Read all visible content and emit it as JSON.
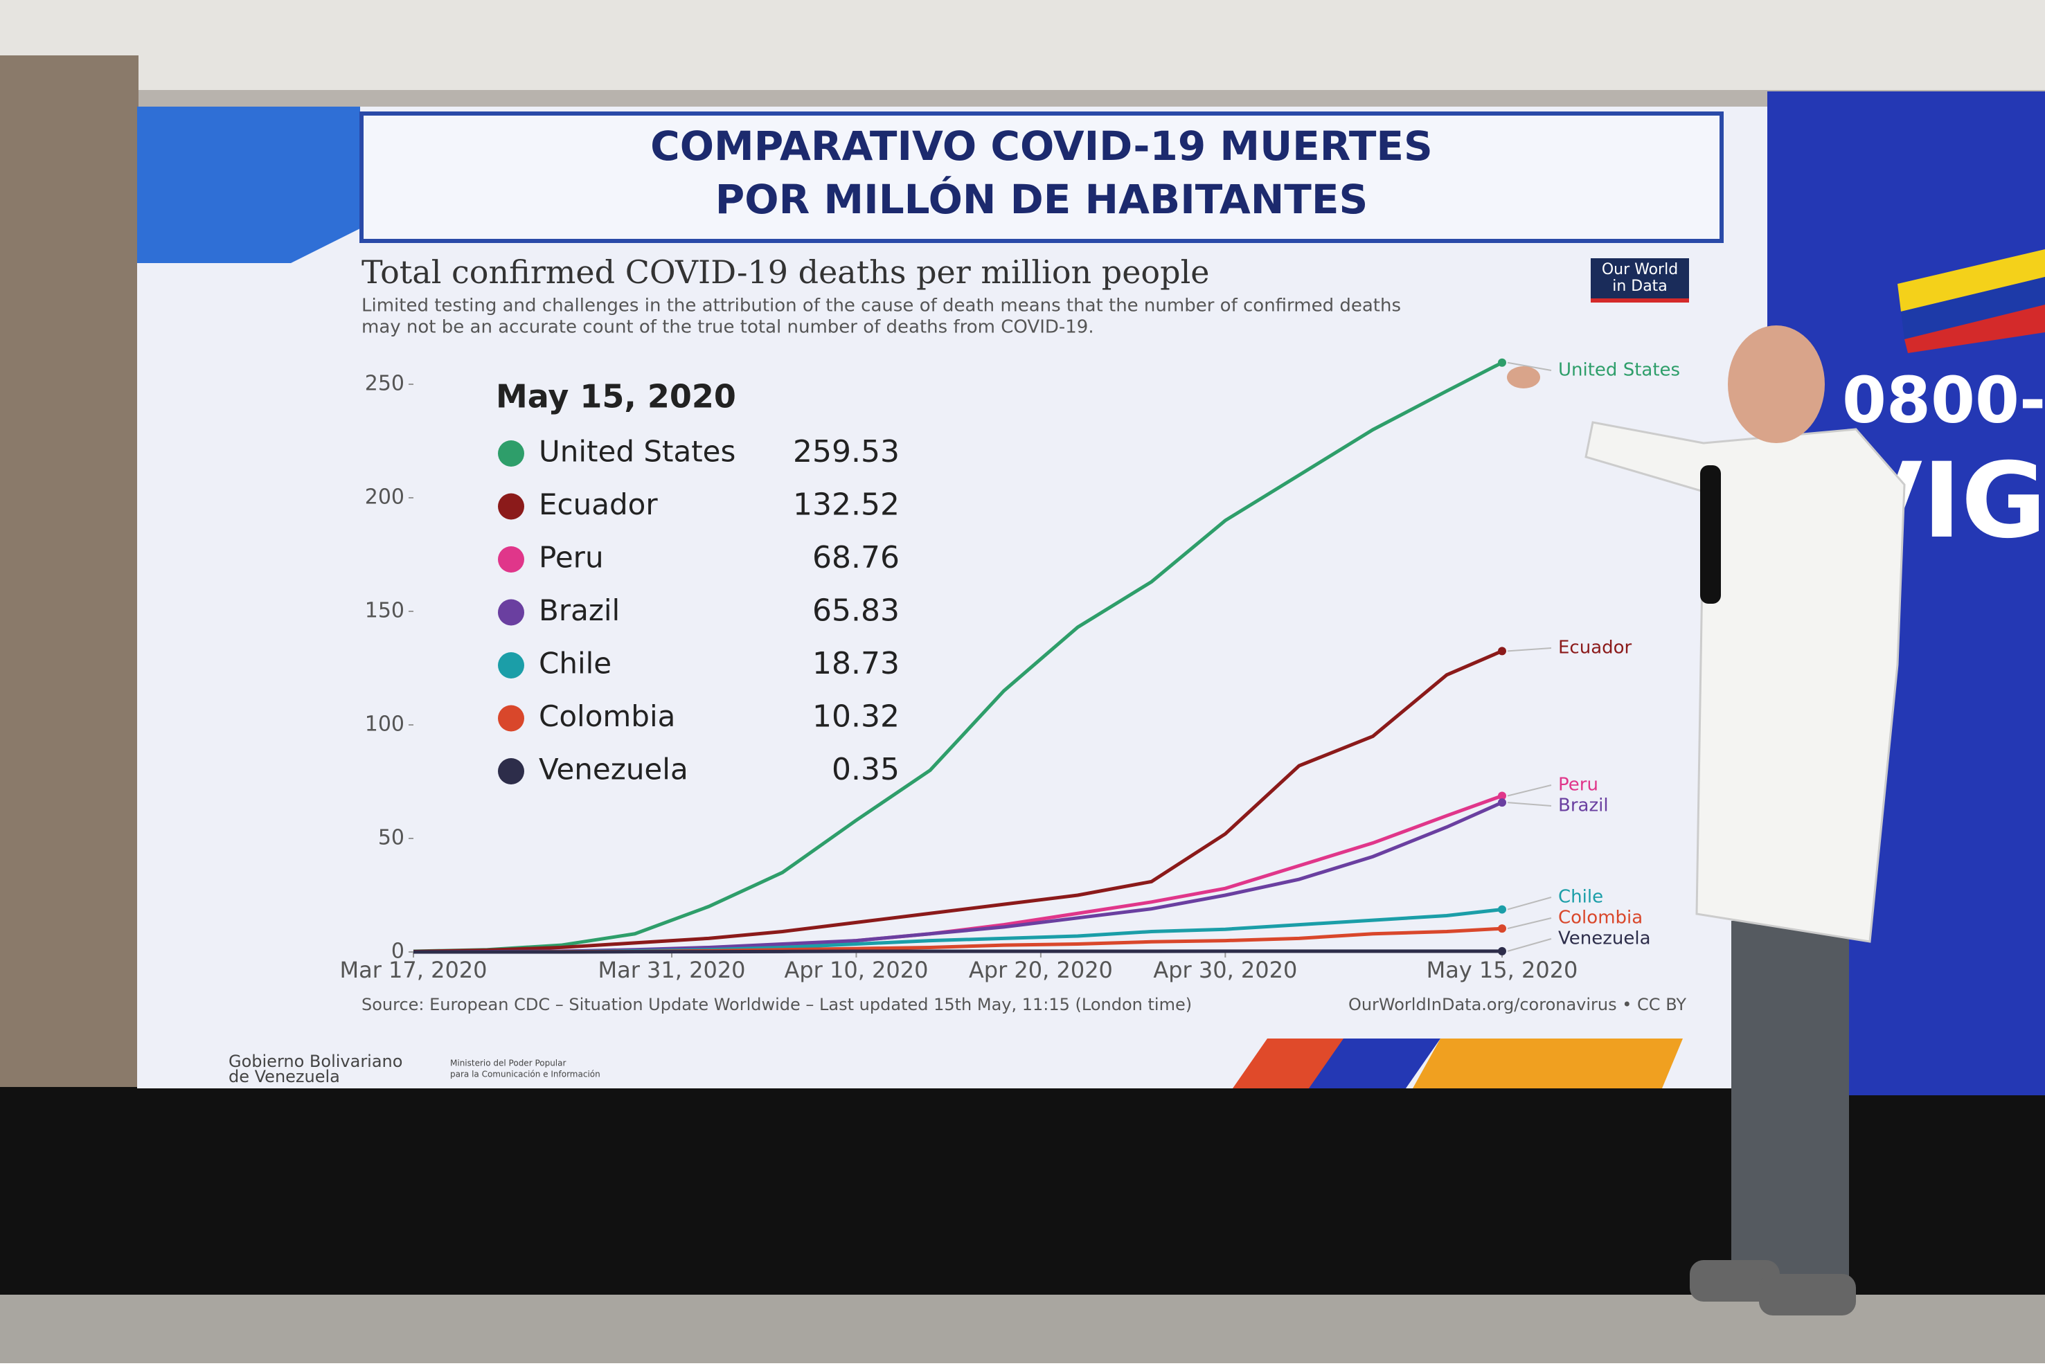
{
  "banner": {
    "line1": "COMPARATIVO COVID-19 MUERTES",
    "line2": "POR MILLÓN DE HABITANTES"
  },
  "side_panel": {
    "line1": "0800-",
    "line2": "VIG"
  },
  "logo": {
    "line1": "Our World",
    "line2": "in Data"
  },
  "footer": {
    "gov1": "Gobierno Bolivariano",
    "gov2": "de Venezuela",
    "ministry1": "Ministerio del Poder Popular",
    "ministry2": "para la Comunicación e Información"
  },
  "chart_data": {
    "type": "line",
    "title": "Total confirmed COVID-19 deaths per million people",
    "subtitle": [
      "Limited testing and challenges in the attribution of the cause of death means that the number of confirmed deaths",
      "may not be an accurate count of the true total number of deaths from COVID-19."
    ],
    "source": "Source: European CDC – Situation Update Worldwide – Last updated 15th May, 11:15 (London time)",
    "credit": "OurWorldInData.org/coronavirus • CC BY",
    "x": [
      "2020-03-17",
      "2020-03-21",
      "2020-03-25",
      "2020-03-29",
      "2020-04-02",
      "2020-04-06",
      "2020-04-10",
      "2020-04-14",
      "2020-04-18",
      "2020-04-22",
      "2020-04-26",
      "2020-04-30",
      "2020-05-04",
      "2020-05-08",
      "2020-05-12",
      "2020-05-15"
    ],
    "xlim": [
      "2020-03-17",
      "2020-05-15"
    ],
    "xticks": [
      {
        "value": "2020-03-17",
        "label": "Mar 17, 2020"
      },
      {
        "value": "2020-03-31",
        "label": "Mar 31, 2020"
      },
      {
        "value": "2020-04-10",
        "label": "Apr 10, 2020"
      },
      {
        "value": "2020-04-20",
        "label": "Apr 20, 2020"
      },
      {
        "value": "2020-04-30",
        "label": "Apr 30, 2020"
      },
      {
        "value": "2020-05-15",
        "label": "May 15, 2020"
      }
    ],
    "ylim": [
      0,
      265
    ],
    "yticks": [
      0,
      50,
      100,
      150,
      200,
      250
    ],
    "grid": false,
    "series": [
      {
        "name": "United States",
        "color": "#2e9e6a",
        "values": [
          0.3,
          1,
          3,
          8,
          20,
          35,
          58,
          80,
          115,
          143,
          163,
          190,
          210,
          230,
          247,
          259.53
        ]
      },
      {
        "name": "Ecuador",
        "color": "#8b1a1a",
        "values": [
          0.2,
          0.8,
          2,
          4,
          6,
          9,
          13,
          17,
          21,
          25,
          31,
          52,
          82,
          95,
          122,
          132.52
        ]
      },
      {
        "name": "Peru",
        "color": "#e0368a",
        "values": [
          0,
          0,
          0.3,
          0.7,
          1.5,
          3,
          5,
          8,
          12,
          17,
          22,
          28,
          38,
          48,
          60,
          68.76
        ]
      },
      {
        "name": "Brazil",
        "color": "#6a3fa0",
        "values": [
          0,
          0.1,
          0.3,
          1,
          2,
          3.5,
          5,
          8,
          11,
          15,
          19,
          25,
          32,
          42,
          55,
          65.83
        ]
      },
      {
        "name": "Chile",
        "color": "#1b9ea8",
        "values": [
          0,
          0,
          0.1,
          0.5,
          1,
          2,
          3.5,
          5,
          6,
          7,
          9,
          10,
          12,
          14,
          16,
          18.73
        ]
      },
      {
        "name": "Colombia",
        "color": "#d9472b",
        "values": [
          0,
          0,
          0.1,
          0.2,
          0.5,
          1,
          1.5,
          2,
          3,
          3.5,
          4.5,
          5,
          6,
          8,
          9,
          10.32
        ]
      },
      {
        "name": "Venezuela",
        "color": "#2d2d4a",
        "values": [
          0,
          0,
          0,
          0.1,
          0.1,
          0.2,
          0.3,
          0.3,
          0.3,
          0.3,
          0.3,
          0.35,
          0.35,
          0.35,
          0.35,
          0.35
        ]
      }
    ]
  }
}
